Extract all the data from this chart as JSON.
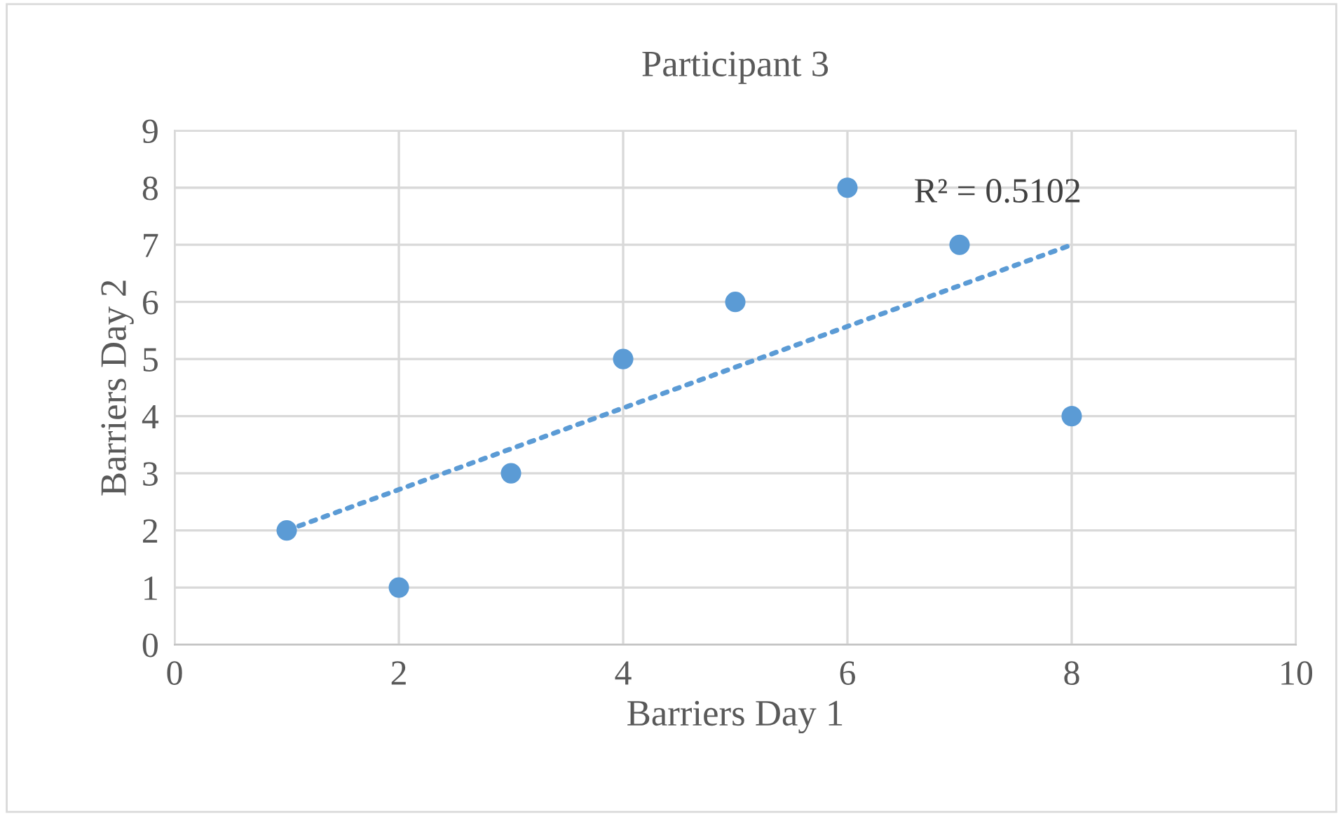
{
  "chart_data": {
    "type": "scatter",
    "title": "Participant 3",
    "xlabel": "Barriers Day 1",
    "ylabel": "Barriers Day 2",
    "xlim": [
      0,
      10
    ],
    "xticks": [
      0,
      2,
      4,
      6,
      8,
      10
    ],
    "ylim": [
      0,
      9
    ],
    "yticks": [
      0,
      1,
      2,
      3,
      4,
      5,
      6,
      7,
      8,
      9
    ],
    "grid": true,
    "series": [
      {
        "color": "#5b9bd5",
        "marker": "circle",
        "x": [
          1,
          2,
          3,
          4,
          5,
          6,
          7,
          8
        ],
        "values": [
          2,
          1,
          3,
          5,
          6,
          8,
          7,
          4
        ]
      },
      {
        "type": "line",
        "color": "#5b9bd5",
        "line_style": "dotted",
        "x": [
          1,
          8
        ],
        "values": [
          2,
          7
        ]
      }
    ],
    "annotations": [
      {
        "text": "R² = 0.5102",
        "x": 8,
        "y": 7
      }
    ]
  }
}
